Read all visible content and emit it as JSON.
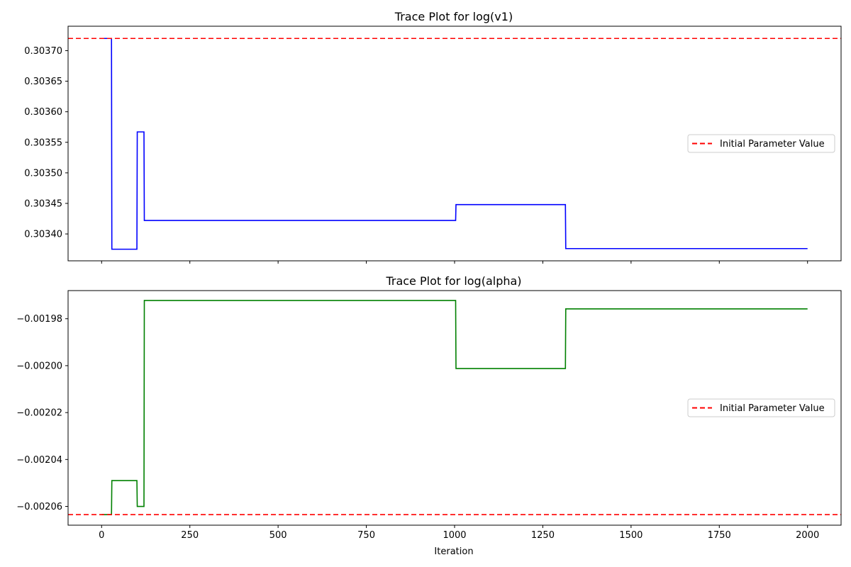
{
  "chart_data": [
    {
      "type": "line",
      "title": "Trace Plot for log(v1)",
      "xlabel": "",
      "ylabel": "",
      "xlim": [
        -95,
        2095
      ],
      "ylim": [
        0.303356,
        0.30374
      ],
      "xticks": [
        0,
        250,
        500,
        750,
        1000,
        1250,
        1500,
        1750,
        2000
      ],
      "xtick_labels_visible": false,
      "yticks": [
        0.3034,
        0.30345,
        0.3035,
        0.30355,
        0.3036,
        0.30365,
        0.3037
      ],
      "ytick_labels": [
        "0.30340",
        "0.30345",
        "0.30350",
        "0.30355",
        "0.30360",
        "0.30365",
        "0.30370"
      ],
      "grid": false,
      "legend_position": "center-right",
      "series": [
        {
          "color": "#0000ff",
          "style": "solid",
          "x": [
            0,
            28,
            29,
            100,
            101,
            120,
            121,
            1003,
            1004,
            1314,
            1315,
            2000
          ],
          "y": [
            0.30372,
            0.30372,
            0.303375,
            0.303375,
            0.303567,
            0.303567,
            0.303422,
            0.303422,
            0.303448,
            0.303448,
            0.303376,
            0.303376
          ]
        }
      ],
      "hlines": [
        {
          "name": "Initial Parameter Value",
          "y": 0.30372,
          "color": "#ff0000",
          "style": "dashed"
        }
      ]
    },
    {
      "type": "line",
      "title": "Trace Plot for log(alpha)",
      "xlabel": "Iteration",
      "ylabel": "",
      "xlim": [
        -95,
        2095
      ],
      "ylim": [
        -0.002068,
        -0.001968
      ],
      "xticks": [
        0,
        250,
        500,
        750,
        1000,
        1250,
        1500,
        1750,
        2000
      ],
      "xtick_labels": [
        "0",
        "250",
        "500",
        "750",
        "1000",
        "1250",
        "1500",
        "1750",
        "2000"
      ],
      "yticks": [
        -0.00206,
        -0.00204,
        -0.00202,
        -0.002,
        -0.00198
      ],
      "ytick_labels": [
        "−0.00206",
        "−0.00204",
        "−0.00202",
        "−0.00200",
        "−0.00198"
      ],
      "grid": false,
      "legend_position": "center-right",
      "series": [
        {
          "color": "#008000",
          "style": "solid",
          "x": [
            0,
            28,
            29,
            100,
            101,
            120,
            121,
            1003,
            1004,
            1314,
            1315,
            2000
          ],
          "y": [
            -0.0020635,
            -0.0020635,
            -0.002049,
            -0.002049,
            -0.00206,
            -0.00206,
            -0.0019722,
            -0.0019722,
            -0.0020012,
            -0.0020012,
            -0.0019758,
            -0.0019758
          ]
        }
      ],
      "hlines": [
        {
          "name": "Initial Parameter Value",
          "y": -0.0020635,
          "color": "#ff0000",
          "style": "dashed"
        }
      ]
    }
  ]
}
